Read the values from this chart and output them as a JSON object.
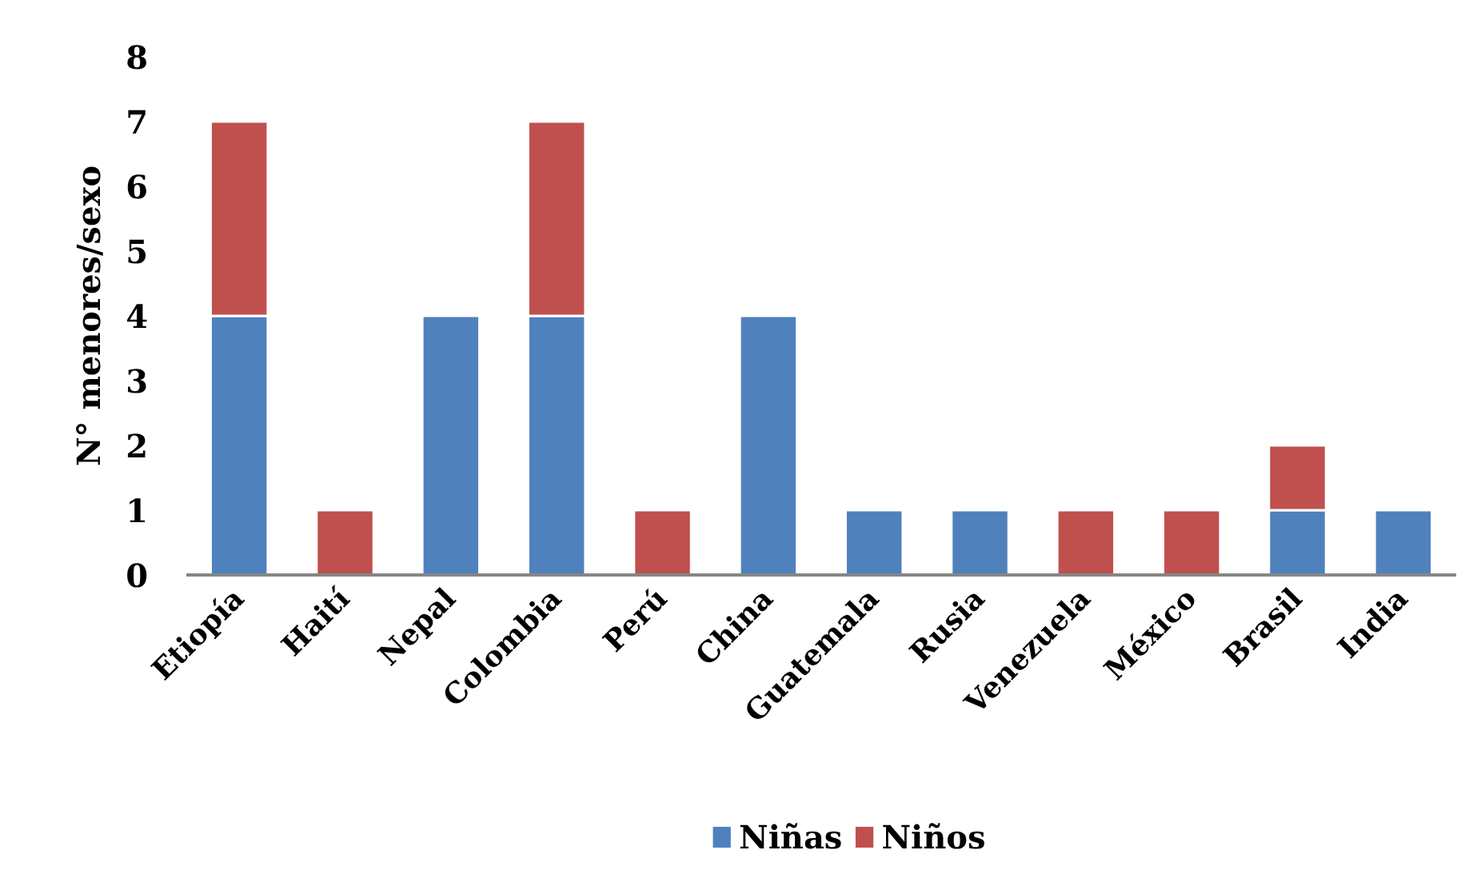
{
  "chart_data": {
    "type": "bar",
    "stacked": true,
    "ylabel": "N° menores/sexo",
    "categories": [
      "Etiopía",
      "Haití",
      "Nepal",
      "Colombia",
      "Perú",
      "China",
      "Guatemala",
      "Rusia",
      "Venezuela",
      "México",
      "Brasil",
      "India"
    ],
    "series": [
      {
        "name": "Niñas",
        "color": "#4f81bd",
        "values": [
          4,
          null,
          4,
          4,
          null,
          4,
          1,
          1,
          null,
          null,
          1,
          1
        ]
      },
      {
        "name": "Niños",
        "color": "#c0504d",
        "values": [
          3,
          1,
          null,
          3,
          1,
          null,
          null,
          null,
          1,
          1,
          1,
          null
        ]
      }
    ],
    "ylim": [
      0,
      8
    ],
    "yticks": [
      0,
      1,
      2,
      3,
      4,
      5,
      6,
      7,
      8
    ],
    "grid": false,
    "legend": "bottom"
  }
}
